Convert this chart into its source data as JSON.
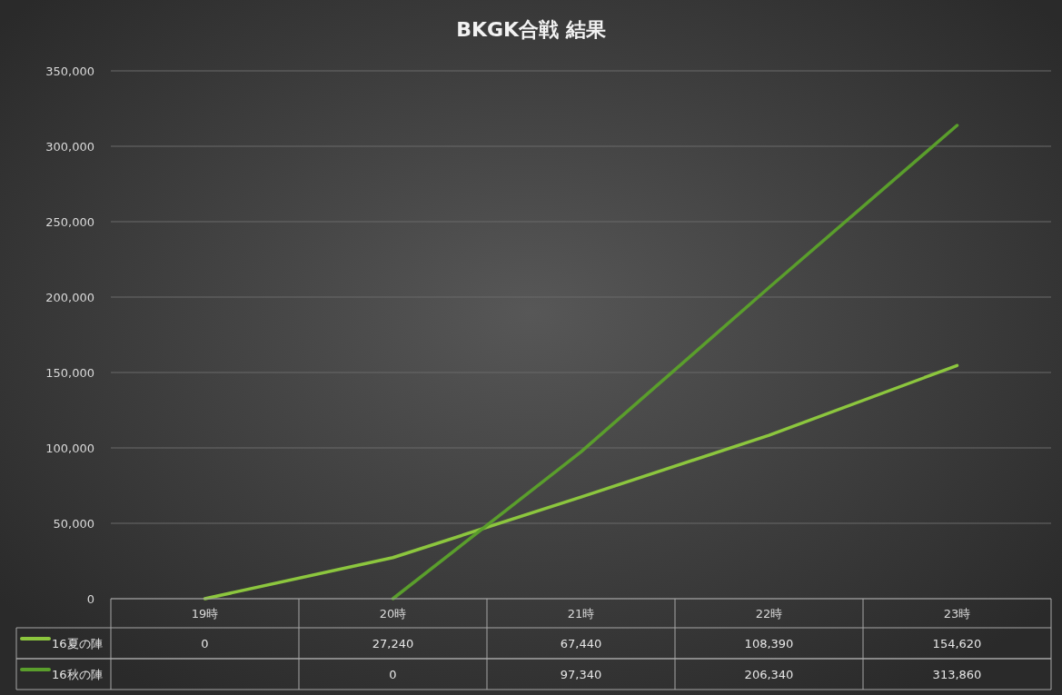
{
  "chart_data": {
    "type": "line",
    "title": "BKGK合戦 結果",
    "categories": [
      "19時",
      "20時",
      "21時",
      "22時",
      "23時"
    ],
    "series": [
      {
        "name": "16夏の陣",
        "color": "#8cc63e",
        "values": [
          0,
          27240,
          67440,
          108390,
          154620
        ],
        "value_labels": [
          "0",
          "27,240",
          "67,440",
          "108,390",
          "154,620"
        ]
      },
      {
        "name": "16秋の陣",
        "color": "#5a9e2c",
        "values": [
          null,
          0,
          97340,
          206340,
          313860
        ],
        "value_labels": [
          null,
          "0",
          "97,340",
          "206,340",
          "313,860"
        ]
      }
    ],
    "ylim": [
      0,
      350000
    ],
    "yticks": [
      {
        "value": 0,
        "label": "0"
      },
      {
        "value": 50000,
        "label": "50,000"
      },
      {
        "value": 100000,
        "label": "100,000"
      },
      {
        "value": 150000,
        "label": "150,000"
      },
      {
        "value": 200000,
        "label": "200,000"
      },
      {
        "value": 250000,
        "label": "250,000"
      },
      {
        "value": 300000,
        "label": "300,000"
      },
      {
        "value": 350000,
        "label": "350,000"
      }
    ],
    "grid": "y",
    "legend": "left",
    "marker": "none",
    "line_style": "solid"
  }
}
